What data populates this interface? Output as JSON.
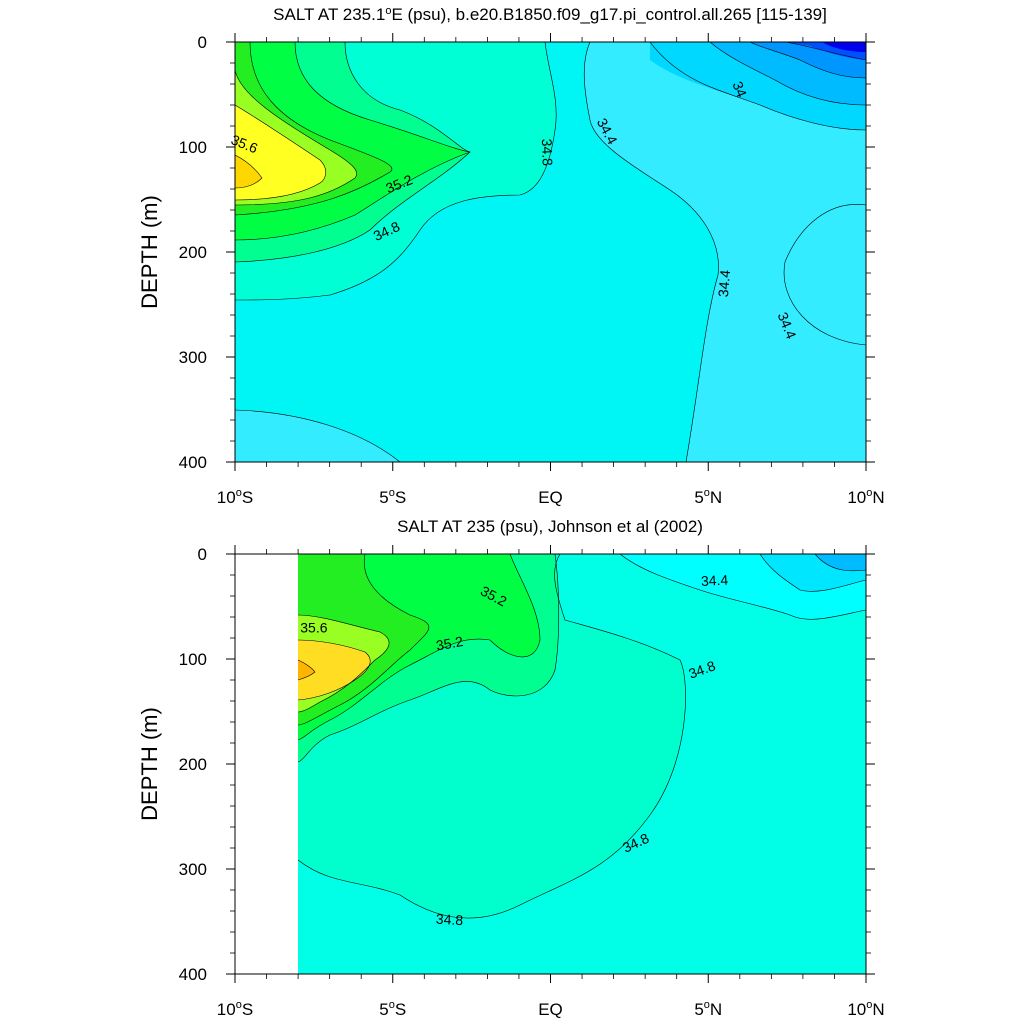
{
  "chart_data": [
    {
      "type": "contour",
      "title": "SALT AT 235.1°E (psu), b.e20.B1850.f09_g17.pi_control.all.265 [115-139]",
      "title_parts": {
        "before": "SALT AT 235.1",
        "superscript": "o",
        "after": "E (psu), b.e20.B1850.f09_g17.pi_control.all.265 [115-139]"
      },
      "ylabel": "DEPTH (m)",
      "xlim": [
        -10,
        10
      ],
      "ylim": [
        0,
        400
      ],
      "y_inverted": true,
      "x_ticks": [
        {
          "value": -10,
          "num": "10",
          "hemi": "S"
        },
        {
          "value": -5,
          "num": "5",
          "hemi": "S"
        },
        {
          "value": 0,
          "num": "EQ",
          "hemi": ""
        },
        {
          "value": 5,
          "num": "5",
          "hemi": "N"
        },
        {
          "value": 10,
          "num": "10",
          "hemi": "N"
        }
      ],
      "y_ticks": [
        {
          "value": 0,
          "label": "0"
        },
        {
          "value": 100,
          "label": "100"
        },
        {
          "value": 200,
          "label": "200"
        },
        {
          "value": 300,
          "label": "300"
        },
        {
          "value": 400,
          "label": "400"
        }
      ],
      "contour_labels": [
        {
          "text": "35.6",
          "lat": -9.7,
          "depth": 97,
          "angle": 22
        },
        {
          "text": "35.2",
          "lat": -4.8,
          "depth": 135,
          "angle": -22
        },
        {
          "text": "34.8",
          "lat": -5.2,
          "depth": 180,
          "angle": -25
        },
        {
          "text": "34.8",
          "lat": -0.1,
          "depth": 105,
          "angle": 88
        },
        {
          "text": "34.4",
          "lat": 1.8,
          "depth": 85,
          "angle": 62
        },
        {
          "text": "34",
          "lat": 6.0,
          "depth": 45,
          "angle": 68
        },
        {
          "text": "34.4",
          "lat": 5.5,
          "depth": 230,
          "angle": -85
        },
        {
          "text": "34.4",
          "lat": 7.5,
          "depth": 270,
          "angle": 68
        }
      ]
    },
    {
      "type": "contour",
      "title": "SALT AT 235 (psu), Johnson et al (2002)",
      "ylabel": "DEPTH (m)",
      "xlim": [
        -10,
        10
      ],
      "ylim": [
        0,
        400
      ],
      "y_inverted": true,
      "no_data_region": {
        "lat_min": -10,
        "lat_max": -8
      },
      "x_ticks": [
        {
          "value": -10,
          "num": "10",
          "hemi": "S"
        },
        {
          "value": -5,
          "num": "5",
          "hemi": "S"
        },
        {
          "value": 0,
          "num": "EQ",
          "hemi": ""
        },
        {
          "value": 5,
          "num": "5",
          "hemi": "N"
        },
        {
          "value": 10,
          "num": "10",
          "hemi": "N"
        }
      ],
      "y_ticks": [
        {
          "value": 0,
          "label": "0"
        },
        {
          "value": 100,
          "label": "100"
        },
        {
          "value": 200,
          "label": "200"
        },
        {
          "value": 300,
          "label": "300"
        },
        {
          "value": 400,
          "label": "400"
        }
      ],
      "contour_labels": [
        {
          "text": "35.6",
          "lat": -7.5,
          "depth": 70,
          "angle": 0
        },
        {
          "text": "35.2",
          "lat": -1.8,
          "depth": 40,
          "angle": 28
        },
        {
          "text": "35.2",
          "lat": -3.2,
          "depth": 85,
          "angle": -10
        },
        {
          "text": "34.4",
          "lat": 5.2,
          "depth": 25,
          "angle": -3
        },
        {
          "text": "34.8",
          "lat": 4.8,
          "depth": 110,
          "angle": -20
        },
        {
          "text": "34.8",
          "lat": 2.7,
          "depth": 275,
          "angle": -25
        },
        {
          "text": "34.8",
          "lat": -3.2,
          "depth": 348,
          "angle": 3
        }
      ]
    }
  ]
}
